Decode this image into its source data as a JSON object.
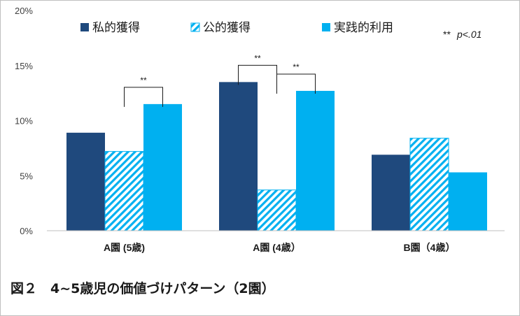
{
  "chart_data": {
    "type": "bar",
    "categories": [
      "A園 (5歳)",
      "A園 (4歳）",
      "B園（4歳）"
    ],
    "series": [
      {
        "name": "私的獲得",
        "values": [
          8.9,
          13.5,
          6.9
        ],
        "color": "#1f497d",
        "pattern": "solid"
      },
      {
        "name": "公的獲得",
        "values": [
          7.2,
          3.7,
          8.4
        ],
        "color": "#00b0f0",
        "pattern": "diagonal-hatch"
      },
      {
        "name": "実践的利用",
        "values": [
          11.5,
          12.7,
          5.3
        ],
        "color": "#00b0f0",
        "pattern": "solid"
      }
    ],
    "ylim": [
      0,
      20
    ],
    "yticks": [
      "0%",
      "5%",
      "10%",
      "15%",
      "20%"
    ],
    "grid": false,
    "legend_position": "top",
    "significance_note": {
      "marker": "**",
      "text": "p<.01"
    },
    "significance_brackets": [
      {
        "category": 0,
        "from_series": 1,
        "to_series": 2,
        "label": "**"
      },
      {
        "category": 1,
        "from_series": 0,
        "to_series": 1,
        "label": "**"
      },
      {
        "category": 1,
        "from_series": 1,
        "to_series": 2,
        "label": "**"
      }
    ]
  },
  "caption": "図２　4~5歳児の価値づけパターン（2園）"
}
